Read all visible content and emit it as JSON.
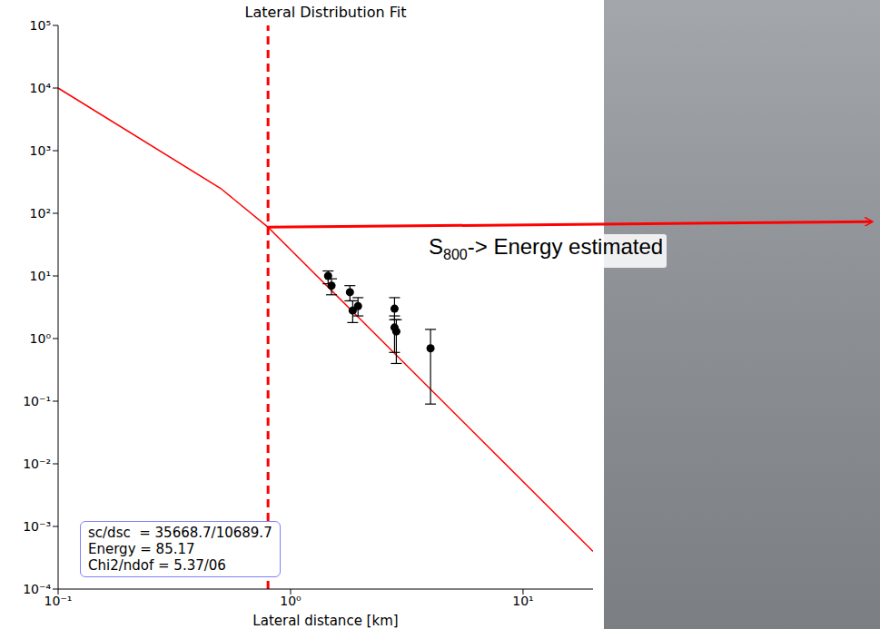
{
  "chart_data": {
    "type": "line",
    "title": "Lateral Distribution Fit",
    "x_label": "Lateral distance [km]",
    "log": true,
    "grid": false,
    "xlim": [
      0.1,
      20
    ],
    "xticks": [
      {
        "value": 0.1,
        "label": "10⁻¹"
      },
      {
        "value": 1,
        "label": "10⁰"
      },
      {
        "value": 10,
        "label": "10¹"
      }
    ],
    "ylim": [
      0.0001,
      100000
    ],
    "yticks": [
      {
        "value": 0.0001,
        "label": "10⁻⁴"
      },
      {
        "value": 0.001,
        "label": "10⁻³"
      },
      {
        "value": 0.01,
        "label": "10⁻²"
      },
      {
        "value": 0.1,
        "label": "10⁻¹"
      },
      {
        "value": 1,
        "label": "10⁰"
      },
      {
        "value": 10,
        "label": "10¹"
      },
      {
        "value": 100,
        "label": "10²"
      },
      {
        "value": 1000,
        "label": "10³"
      },
      {
        "value": 10000,
        "label": "10⁴"
      },
      {
        "value": 100000,
        "label": "10⁵"
      }
    ],
    "series": [
      {
        "type": "line",
        "color": "#ff0000",
        "line_style": "solid",
        "x": [
          0.1,
          0.5,
          0.8,
          20
        ],
        "values": [
          10000,
          250,
          60,
          0.0004
        ]
      },
      {
        "type": "scatter",
        "color": "#000000",
        "marker": "circle",
        "x": [
          1.45,
          1.5,
          1.8,
          1.85,
          1.95,
          2.8,
          2.8,
          2.85,
          4.0
        ],
        "values": [
          10,
          7,
          5.5,
          2.8,
          3.3,
          3.0,
          1.5,
          1.3,
          0.7
        ],
        "error_low": [
          7.5,
          5,
          4,
          1.8,
          2.3,
          2.0,
          0.6,
          0.4,
          0.09
        ],
        "error_high": [
          12,
          9,
          7,
          4,
          4.5,
          4.5,
          2.3,
          2.0,
          1.4
        ]
      }
    ],
    "reference_line": {
      "x": 0.8,
      "color": "#ff0000",
      "line_style": "dashed"
    },
    "annotation": {
      "text": "S",
      "subscript": "800",
      "suffix": "-> Energy estimated",
      "x": 0.8,
      "y": 60,
      "color": "#ff0000"
    },
    "info_box": {
      "lines": [
        "sc/dsc  = 35668.7/10689.7",
        "Energy = 85.17",
        "Chi2/ndof = 5.37/06"
      ],
      "color": "#7f7fff"
    }
  }
}
